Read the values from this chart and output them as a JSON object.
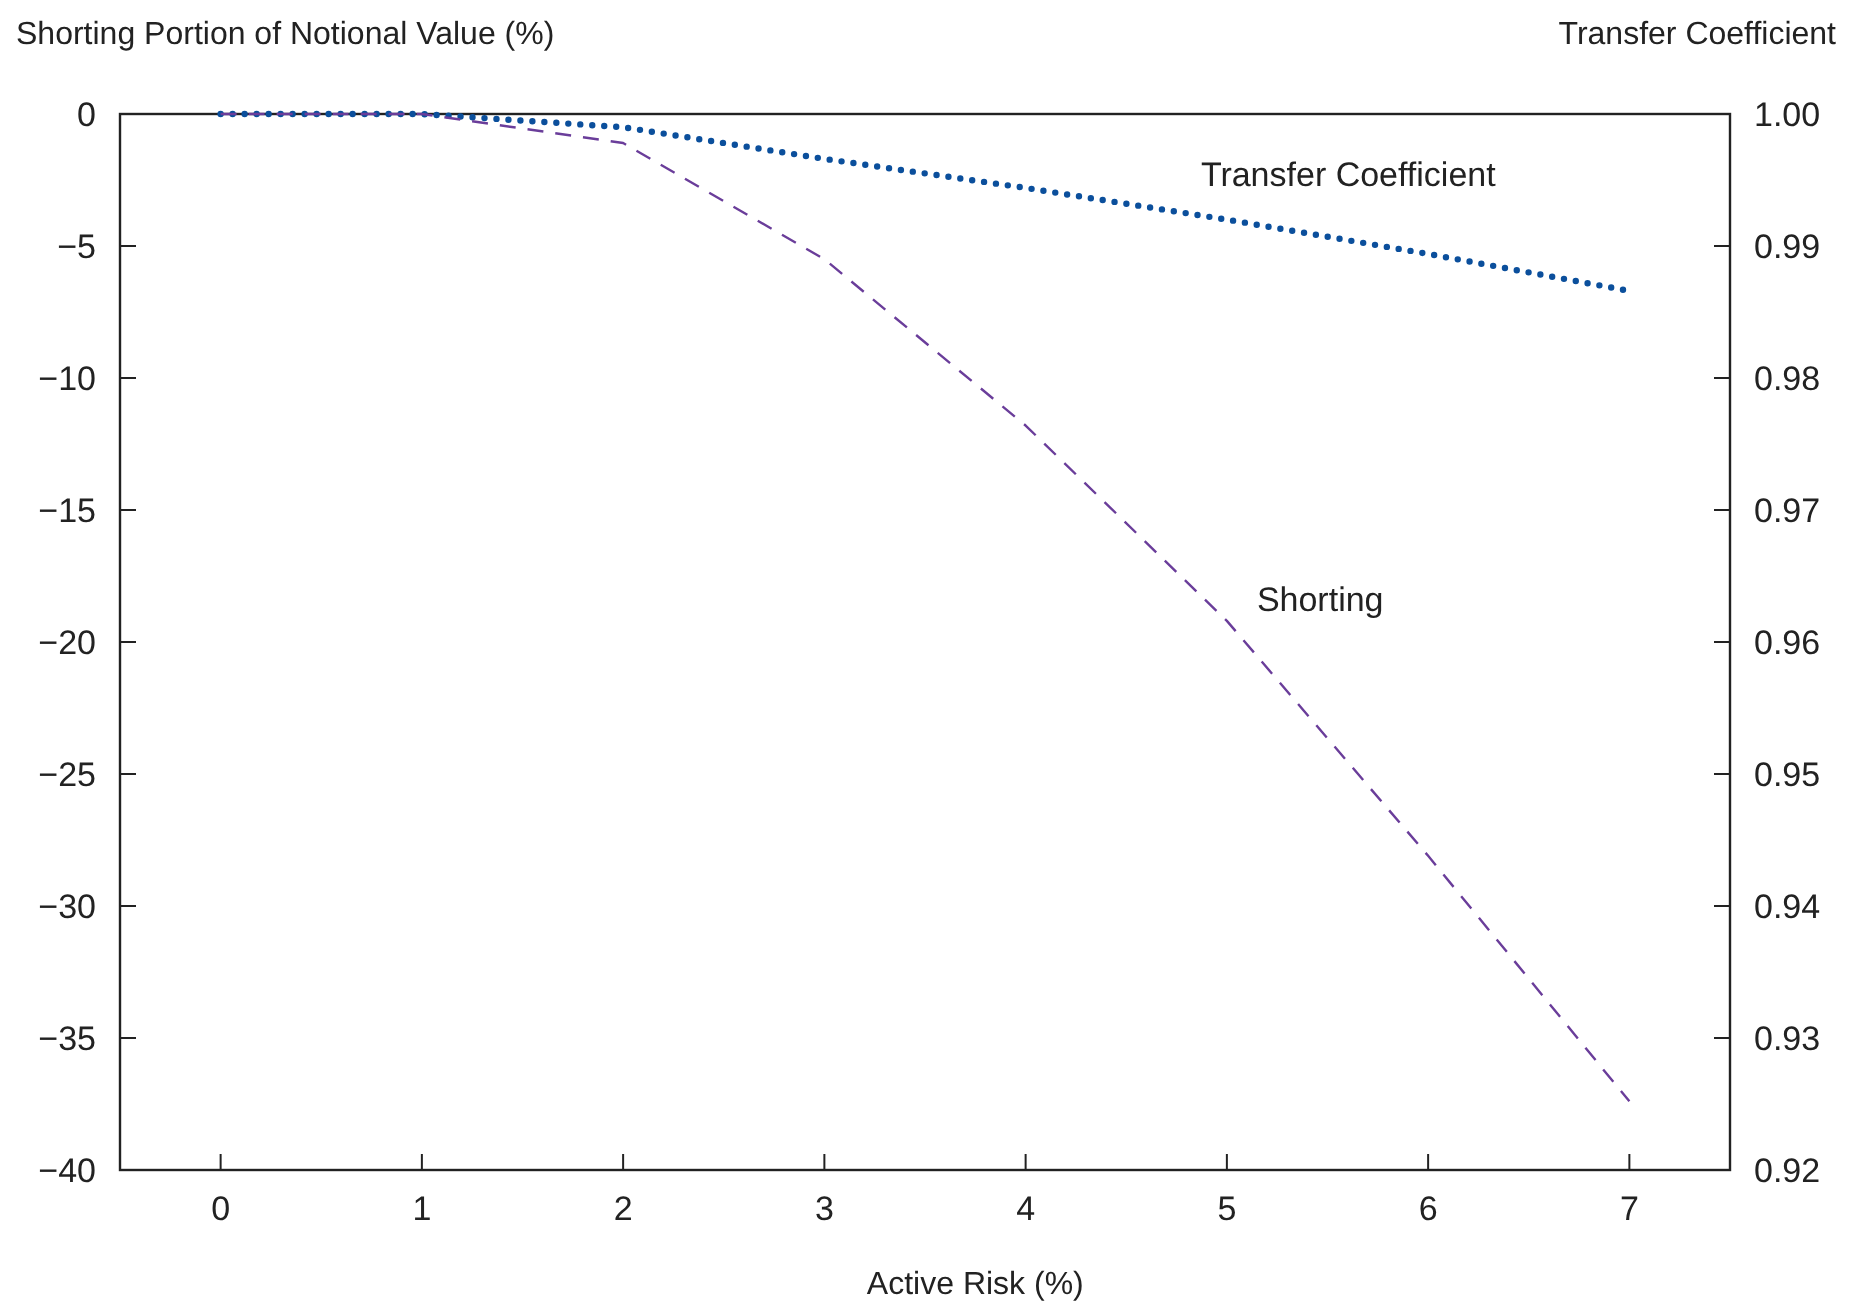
{
  "chart_data": {
    "type": "line",
    "xlabel": "Active Risk (%)",
    "ylabel": "Shorting Portion of Notional Value (%)",
    "y2label": "Transfer Coefficient",
    "x": [
      0,
      1,
      2,
      3,
      4,
      5,
      6,
      7
    ],
    "xlim": [
      -0.5,
      7.5
    ],
    "xticks": [
      0,
      1,
      2,
      3,
      4,
      5,
      6,
      7
    ],
    "ylim": [
      -40,
      0
    ],
    "yticks": [
      {
        "value": -40,
        "label": "−40"
      },
      {
        "value": -35,
        "label": "−35"
      },
      {
        "value": -30,
        "label": "−30"
      },
      {
        "value": -25,
        "label": "−25"
      },
      {
        "value": -20,
        "label": "−20"
      },
      {
        "value": -15,
        "label": "−15"
      },
      {
        "value": -10,
        "label": "−10"
      },
      {
        "value": -5,
        "label": "−5"
      },
      0
    ],
    "y2lim": [
      0.92,
      1.0
    ],
    "y2ticks": [
      0.92,
      0.93,
      0.94,
      0.95,
      0.96,
      0.97,
      0.98,
      0.99,
      {
        "value": 1.0,
        "label": "1.00"
      }
    ],
    "grid": false,
    "legend": false,
    "series": [
      {
        "name": "Transfer Coefficient",
        "color": "#0b4f9c",
        "axis": "y2",
        "line_style": "dotted",
        "values": [
          1.0,
          1.0,
          0.999,
          0.9966,
          0.9944,
          0.992,
          0.9894,
          0.9866
        ]
      },
      {
        "name": "Shorting",
        "color": "#6a3d9a",
        "axis": "y",
        "line_style": "dashed",
        "values": [
          0,
          0,
          -1.1,
          -5.5,
          -11.8,
          -19.2,
          -28.1,
          -37.4
        ]
      }
    ]
  }
}
